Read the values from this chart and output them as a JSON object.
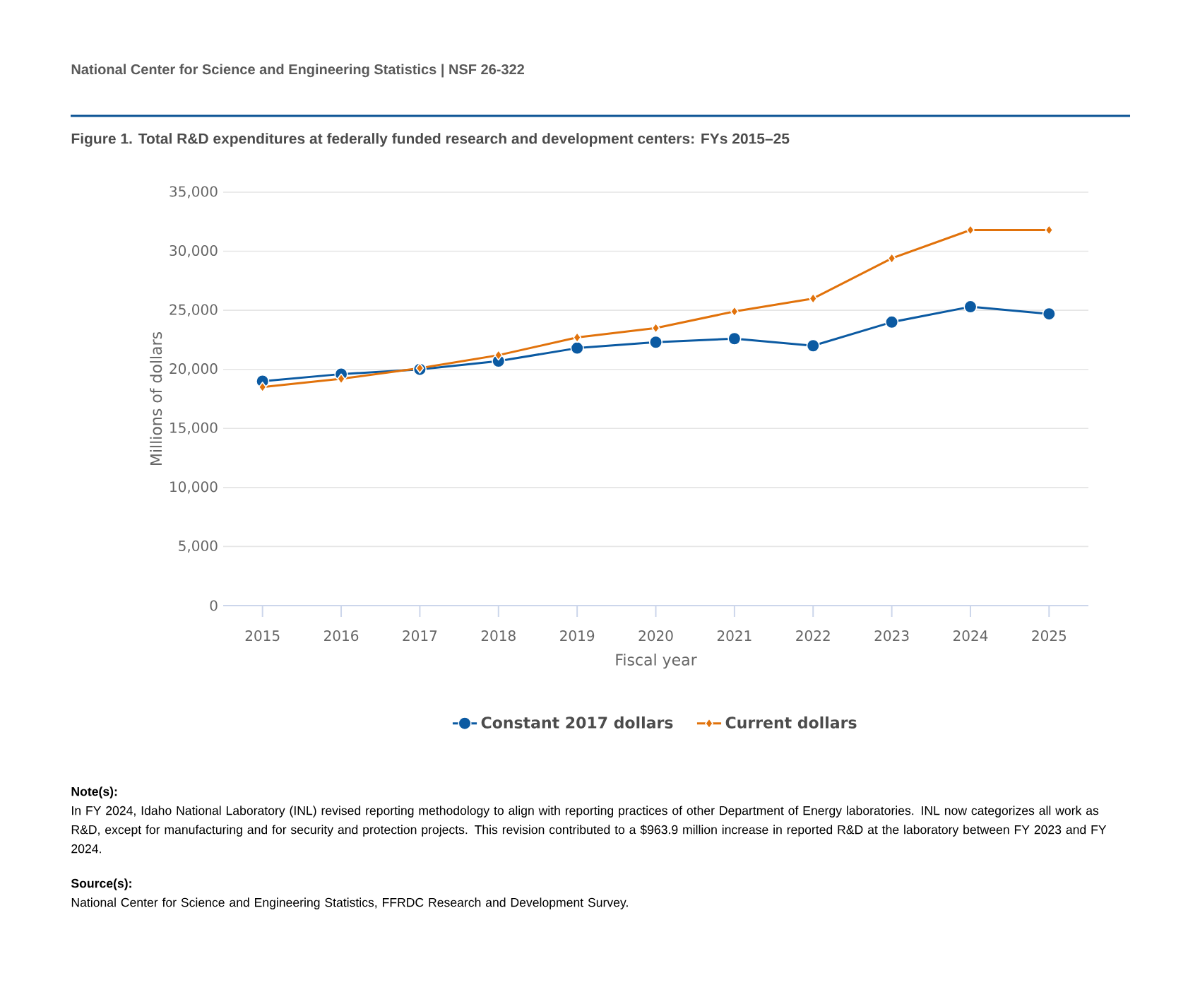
{
  "chart_data": {
    "type": "line",
    "title": "Figure 1. Total R&D expenditures at federally funded research and development centers: FYs 2015–25",
    "xlabel": "Fiscal year",
    "ylabel": "Millions of dollars",
    "categories": [
      "2015",
      "2016",
      "2017",
      "2018",
      "2019",
      "2020",
      "2021",
      "2022",
      "2023",
      "2024",
      "2025"
    ],
    "series": [
      {
        "name": "Constant 2017 dollars",
        "color": "#0b5aa2",
        "marker": "circle",
        "values": [
          19000,
          19600,
          20000,
          20700,
          21800,
          22300,
          22600,
          22000,
          24000,
          25300,
          24700
        ]
      },
      {
        "name": "Current dollars",
        "color": "#e1720b",
        "marker": "diamond",
        "values": [
          18500,
          19200,
          20100,
          21200,
          22700,
          23500,
          24900,
          26000,
          29400,
          31800,
          31800
        ]
      }
    ],
    "ylim": [
      0,
      35000
    ],
    "yticks": [
      0,
      {
        "value": 5000,
        "label": "5,000"
      },
      {
        "value": 10000,
        "label": "10,000"
      },
      {
        "value": 15000,
        "label": "15,000"
      },
      {
        "value": 20000,
        "label": "20,000"
      },
      {
        "value": 25000,
        "label": "25,000"
      },
      {
        "value": 30000,
        "label": "30,000"
      },
      {
        "value": 35000,
        "label": "35,000"
      }
    ],
    "grid": "y",
    "legend": "bottom",
    "line_style": "solid",
    "annotations": [
      "National Center for Science and Engineering Statistics  |  NSF 26-322",
      "**Note(s):**",
      "In FY 2024, Idaho National Laboratory (INL) revised reporting methodology to align with reporting practices of other Department of Energy laboratories. INL now categorizes all work as R&D, except for manufacturing and for security and protection projects. This revision contributed to a $963.9 million increase in reported R&D at the laboratory between FY 2023 and FY 2024.",
      "**Source(s):**",
      "National Center for Science and Engineering Statistics, FFRDC Research and Development Survey."
    ]
  }
}
